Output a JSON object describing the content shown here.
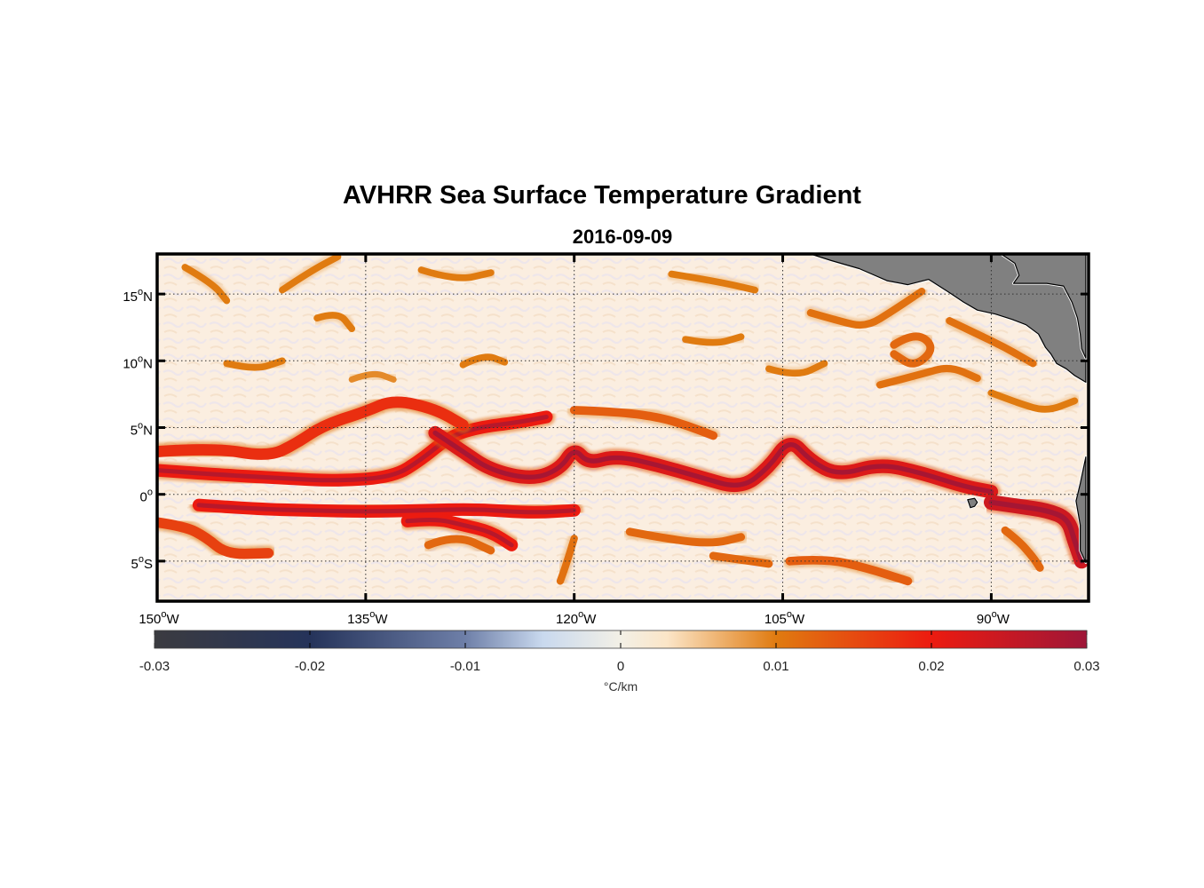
{
  "title": "AVHRR Sea Surface Temperature Gradient",
  "date": "2016-09-09",
  "map": {
    "lon_range": [
      -150,
      -83
    ],
    "lat_range": [
      -8,
      18
    ],
    "x_ticks": [
      {
        "value": -150,
        "label": "150",
        "sup": "o",
        "suffix": "W"
      },
      {
        "value": -135,
        "label": "135",
        "sup": "o",
        "suffix": "W"
      },
      {
        "value": -120,
        "label": "120",
        "sup": "o",
        "suffix": "W"
      },
      {
        "value": -105,
        "label": "105",
        "sup": "o",
        "suffix": "W"
      },
      {
        "value": -90,
        "label": "90",
        "sup": "o",
        "suffix": "W"
      }
    ],
    "y_ticks": [
      {
        "value": 15,
        "label": "15",
        "sup": "o",
        "suffix": "N"
      },
      {
        "value": 10,
        "label": "10",
        "sup": "o",
        "suffix": "N"
      },
      {
        "value": 5,
        "label": "5",
        "sup": "o",
        "suffix": "N"
      },
      {
        "value": 0,
        "label": "0",
        "sup": "o",
        "suffix": ""
      },
      {
        "value": -5,
        "label": "5",
        "sup": "o",
        "suffix": "S"
      }
    ],
    "grid": true,
    "land_color": "#808080",
    "ocean_base_color": "#fbeee0"
  },
  "colorbar": {
    "range": [
      -0.03,
      0.03
    ],
    "ticks": [
      "-0.03",
      "-0.02",
      "-0.01",
      "0",
      "0.01",
      "0.02",
      "0.03"
    ],
    "unit": "°C/km",
    "stops": [
      {
        "value": -0.03,
        "color": "#3b3b40"
      },
      {
        "value": -0.02,
        "color": "#25335a"
      },
      {
        "value": -0.01,
        "color": "#6e7fa8"
      },
      {
        "value": -0.005,
        "color": "#c9d9ee"
      },
      {
        "value": 0.0,
        "color": "#f3f0e6"
      },
      {
        "value": 0.003,
        "color": "#fbe5c7"
      },
      {
        "value": 0.01,
        "color": "#e07b10"
      },
      {
        "value": 0.02,
        "color": "#ec1b10"
      },
      {
        "value": 0.03,
        "color": "#9e1638"
      }
    ]
  },
  "fronts": [
    {
      "strength": 0.02,
      "points": [
        [
          -150,
          1.8
        ],
        [
          -146,
          1.5
        ],
        [
          -141,
          1.2
        ],
        [
          -137,
          1.0
        ],
        [
          -133,
          1.3
        ],
        [
          -131,
          2.6
        ],
        [
          -129,
          4.3
        ],
        [
          -127,
          5.0
        ],
        [
          -124,
          5.4
        ],
        [
          -122,
          5.8
        ]
      ]
    },
    {
      "strength": 0.018,
      "points": [
        [
          -150,
          3.2
        ],
        [
          -146,
          3.5
        ],
        [
          -142,
          2.8
        ],
        [
          -140,
          3.8
        ],
        [
          -138,
          5.2
        ],
        [
          -135,
          6.2
        ],
        [
          -133,
          7.1
        ],
        [
          -130,
          6.4
        ],
        [
          -128,
          5.2
        ]
      ]
    },
    {
      "strength": 0.022,
      "points": [
        [
          -130,
          4.6
        ],
        [
          -128,
          3.2
        ],
        [
          -126,
          1.8
        ],
        [
          -123,
          1.1
        ],
        [
          -121,
          1.9
        ],
        [
          -120,
          3.5
        ],
        [
          -119,
          2.3
        ],
        [
          -117,
          2.9
        ],
        [
          -114,
          2.2
        ],
        [
          -111,
          1.3
        ],
        [
          -108,
          0.4
        ],
        [
          -106,
          2.0
        ],
        [
          -104.5,
          4.2
        ],
        [
          -103,
          2.5
        ],
        [
          -101,
          1.4
        ],
        [
          -98,
          2.3
        ],
        [
          -95,
          1.6
        ],
        [
          -92,
          0.6
        ],
        [
          -90,
          0.2
        ]
      ]
    },
    {
      "strength": 0.013,
      "points": [
        [
          -120,
          6.3
        ],
        [
          -117,
          6.2
        ],
        [
          -114,
          5.8
        ],
        [
          -112,
          5.2
        ],
        [
          -110,
          4.4
        ]
      ]
    },
    {
      "strength": 0.024,
      "points": [
        [
          -90,
          -0.6
        ],
        [
          -88,
          -0.9
        ],
        [
          -86,
          -1.2
        ],
        [
          -84.5,
          -1.8
        ],
        [
          -84,
          -3.5
        ],
        [
          -83.5,
          -5.0
        ]
      ]
    },
    {
      "strength": 0.02,
      "points": [
        [
          -147,
          -0.8
        ],
        [
          -143,
          -1.1
        ],
        [
          -139,
          -1.2
        ],
        [
          -135,
          -1.3
        ],
        [
          -131,
          -1.2
        ],
        [
          -127,
          -1.1
        ],
        [
          -123,
          -1.4
        ],
        [
          -120,
          -1.2
        ]
      ]
    },
    {
      "strength": 0.02,
      "points": [
        [
          -132,
          -2.0
        ],
        [
          -130,
          -1.8
        ],
        [
          -128,
          -2.3
        ],
        [
          -126,
          -2.8
        ],
        [
          -124.5,
          -3.8
        ]
      ]
    },
    {
      "strength": 0.016,
      "points": [
        [
          -150,
          -2.1
        ],
        [
          -148,
          -2.4
        ],
        [
          -146.5,
          -3.2
        ],
        [
          -145,
          -4.5
        ],
        [
          -142,
          -4.4
        ]
      ]
    },
    {
      "strength": 0.012,
      "points": [
        [
          -130.5,
          -3.8
        ],
        [
          -128.5,
          -3.0
        ],
        [
          -126,
          -4.2
        ]
      ]
    },
    {
      "strength": 0.011,
      "points": [
        [
          -120,
          -3.3
        ],
        [
          -120.5,
          -5.0
        ],
        [
          -121,
          -6.5
        ]
      ]
    },
    {
      "strength": 0.012,
      "points": [
        [
          -116,
          -2.8
        ],
        [
          -113,
          -3.4
        ],
        [
          -110,
          -3.7
        ],
        [
          -108,
          -3.2
        ]
      ]
    },
    {
      "strength": 0.012,
      "points": [
        [
          -110,
          -4.6
        ],
        [
          -108,
          -4.9
        ],
        [
          -106,
          -5.2
        ]
      ]
    },
    {
      "strength": 0.013,
      "points": [
        [
          -104.5,
          -5.0
        ],
        [
          -102,
          -4.8
        ],
        [
          -99,
          -5.5
        ],
        [
          -96,
          -6.5
        ]
      ]
    },
    {
      "strength": 0.012,
      "points": [
        [
          -89,
          -2.7
        ],
        [
          -88,
          -3.5
        ],
        [
          -87,
          -4.7
        ],
        [
          -86.5,
          -5.5
        ]
      ]
    },
    {
      "strength": 0.012,
      "points": [
        [
          -97,
          11.2
        ],
        [
          -95.5,
          12.2
        ],
        [
          -94,
          11.0
        ],
        [
          -95.5,
          9.5
        ],
        [
          -97,
          10.5
        ]
      ]
    },
    {
      "strength": 0.011,
      "points": [
        [
          -98,
          8.2
        ],
        [
          -95,
          9.0
        ],
        [
          -93,
          9.6
        ],
        [
          -91,
          8.7
        ]
      ]
    },
    {
      "strength": 0.011,
      "points": [
        [
          -103,
          13.6
        ],
        [
          -101,
          13.0
        ],
        [
          -99,
          12.5
        ],
        [
          -97,
          13.8
        ],
        [
          -95,
          15.2
        ]
      ]
    },
    {
      "strength": 0.011,
      "points": [
        [
          -93,
          13.0
        ],
        [
          -91,
          12.0
        ],
        [
          -89,
          11.0
        ],
        [
          -87,
          9.8
        ]
      ]
    },
    {
      "strength": 0.01,
      "points": [
        [
          -90,
          7.6
        ],
        [
          -88,
          6.8
        ],
        [
          -86,
          6.2
        ],
        [
          -84,
          7.0
        ]
      ]
    },
    {
      "strength": 0.01,
      "points": [
        [
          -141,
          15.3
        ],
        [
          -139,
          16.7
        ],
        [
          -137,
          17.8
        ]
      ]
    },
    {
      "strength": 0.01,
      "points": [
        [
          -148,
          17.0
        ],
        [
          -146,
          15.8
        ],
        [
          -145,
          14.5
        ]
      ]
    },
    {
      "strength": 0.01,
      "points": [
        [
          -138.5,
          13.2
        ],
        [
          -137,
          13.7
        ],
        [
          -136,
          12.4
        ]
      ]
    },
    {
      "strength": 0.01,
      "points": [
        [
          -131,
          16.8
        ],
        [
          -128.5,
          16.0
        ],
        [
          -126,
          16.6
        ]
      ]
    },
    {
      "strength": 0.01,
      "points": [
        [
          -113,
          16.5
        ],
        [
          -110,
          16.0
        ],
        [
          -107,
          15.3
        ]
      ]
    },
    {
      "strength": 0.01,
      "points": [
        [
          -145,
          9.8
        ],
        [
          -143,
          9.3
        ],
        [
          -141,
          10.0
        ]
      ]
    },
    {
      "strength": 0.01,
      "points": [
        [
          -112,
          11.6
        ],
        [
          -110,
          11.2
        ],
        [
          -108,
          11.8
        ]
      ]
    },
    {
      "strength": 0.01,
      "points": [
        [
          -106,
          9.4
        ],
        [
          -104,
          8.8
        ],
        [
          -102,
          9.8
        ]
      ]
    },
    {
      "strength": 0.01,
      "points": [
        [
          -128,
          9.7
        ],
        [
          -126.5,
          10.5
        ],
        [
          -125,
          9.9
        ]
      ]
    },
    {
      "strength": 0.009,
      "points": [
        [
          -136,
          8.6
        ],
        [
          -134.5,
          9.2
        ],
        [
          -133,
          8.6
        ]
      ]
    }
  ],
  "land": [
    [
      [
        -103,
        18
      ],
      [
        -101.5,
        17.5
      ],
      [
        -99.5,
        16.9
      ],
      [
        -97.5,
        16.0
      ],
      [
        -96,
        15.7
      ],
      [
        -94.5,
        16.1
      ],
      [
        -93,
        15.1
      ],
      [
        -92,
        14.4
      ],
      [
        -91,
        13.8
      ],
      [
        -89.7,
        13.5
      ],
      [
        -88.5,
        13.1
      ],
      [
        -87.5,
        12.7
      ],
      [
        -86.6,
        12.0
      ],
      [
        -86.1,
        11.0
      ],
      [
        -85.7,
        10.5
      ],
      [
        -85.3,
        9.8
      ],
      [
        -84.6,
        9.4
      ],
      [
        -84,
        8.9
      ],
      [
        -83.2,
        8.4
      ],
      [
        -83.2,
        18
      ]
    ],
    [
      [
        -89.3,
        18
      ],
      [
        -88.3,
        17.3
      ],
      [
        -88.0,
        16.4
      ],
      [
        -88.4,
        15.8
      ],
      [
        -87.5,
        15.8
      ],
      [
        -86,
        15.8
      ],
      [
        -84.8,
        15.6
      ],
      [
        -84.2,
        14.4
      ],
      [
        -83.8,
        13.2
      ],
      [
        -83.6,
        12.0
      ],
      [
        -83.5,
        10.9
      ],
      [
        -83.2,
        10.2
      ],
      [
        -83.2,
        18
      ]
    ],
    [
      [
        -83.2,
        2.8
      ],
      [
        -83.6,
        0.8
      ],
      [
        -83.9,
        -0.5
      ],
      [
        -83.6,
        -2.3
      ],
      [
        -83.6,
        -4.2
      ],
      [
        -83.2,
        -5.1
      ]
    ],
    [
      [
        -91.7,
        -0.4
      ],
      [
        -91.2,
        -0.3
      ],
      [
        -91.0,
        -0.6
      ],
      [
        -91.2,
        -0.9
      ],
      [
        -91.5,
        -1.0
      ],
      [
        -91.6,
        -0.7
      ]
    ]
  ]
}
